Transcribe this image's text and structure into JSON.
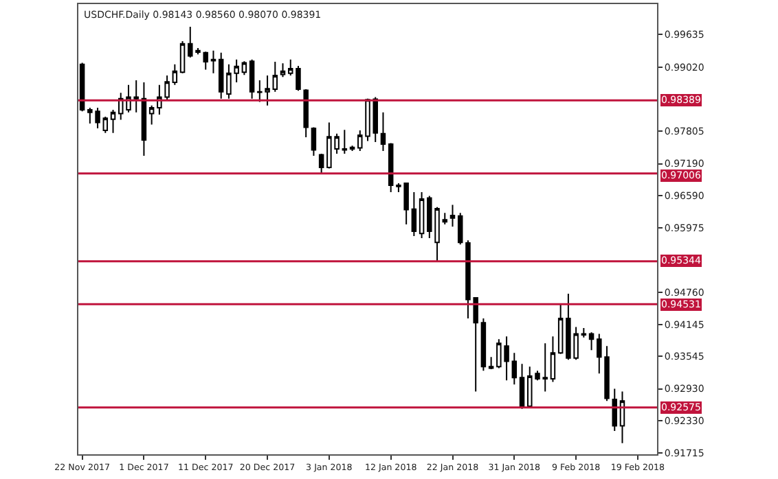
{
  "chart_data": {
    "type": "candlestick",
    "title": "USDCHF.Daily 0.98143 0.98560 0.98070 0.98391",
    "categories": [
      "22 Nov 2017",
      null,
      null,
      null,
      null,
      null,
      null,
      null,
      "1 Dec 2017",
      null,
      null,
      null,
      null,
      null,
      null,
      null,
      "11 Dec 2017",
      null,
      null,
      null,
      null,
      null,
      null,
      null,
      "20 Dec 2017",
      null,
      null,
      null,
      null,
      null,
      null,
      null,
      "3 Jan 2018",
      null,
      null,
      null,
      null,
      null,
      null,
      null,
      "12 Jan 2018",
      null,
      null,
      null,
      null,
      null,
      null,
      null,
      "22 Jan 2018",
      null,
      null,
      null,
      null,
      null,
      null,
      null,
      "31 Jan 2018",
      null,
      null,
      null,
      null,
      null,
      null,
      null,
      "9 Feb 2018",
      null,
      null,
      null,
      null,
      null,
      null,
      null,
      "19 Feb 2018",
      null,
      null
    ],
    "ohlc": [
      [
        0.9907,
        0.991,
        0.9818,
        0.9821
      ],
      [
        0.9821,
        0.9825,
        0.9795,
        0.9816
      ],
      [
        0.9818,
        0.9825,
        0.9786,
        0.9797
      ],
      [
        0.9782,
        0.9808,
        0.9777,
        0.9805
      ],
      [
        0.9803,
        0.9821,
        0.9777,
        0.9816
      ],
      [
        0.9814,
        0.9853,
        0.9802,
        0.9842
      ],
      [
        0.9821,
        0.9868,
        0.9816,
        0.9845
      ],
      [
        0.9845,
        0.9877,
        0.9816,
        0.9842
      ],
      [
        0.9842,
        0.9873,
        0.9734,
        0.9764
      ],
      [
        0.9814,
        0.9829,
        0.9793,
        0.9825
      ],
      [
        0.9825,
        0.9868,
        0.9812,
        0.9845
      ],
      [
        0.9845,
        0.9886,
        0.9838,
        0.9874
      ],
      [
        0.9873,
        0.9907,
        0.9868,
        0.9894
      ],
      [
        0.9892,
        0.9951,
        0.989,
        0.9946
      ],
      [
        0.9946,
        0.9978,
        0.992,
        0.9923
      ],
      [
        0.9933,
        0.9938,
        0.9926,
        0.993
      ],
      [
        0.9929,
        0.9931,
        0.9897,
        0.9912
      ],
      [
        0.9916,
        0.9933,
        0.989,
        0.9914
      ],
      [
        0.9916,
        0.9929,
        0.9842,
        0.9855
      ],
      [
        0.9851,
        0.9907,
        0.9842,
        0.989
      ],
      [
        0.989,
        0.9916,
        0.9873,
        0.9903
      ],
      [
        0.9892,
        0.9913,
        0.9887,
        0.991
      ],
      [
        0.9913,
        0.9916,
        0.9842,
        0.9855
      ],
      [
        0.9855,
        0.9877,
        0.9836,
        0.9854
      ],
      [
        0.9855,
        0.9886,
        0.9829,
        0.9861
      ],
      [
        0.986,
        0.9912,
        0.9855,
        0.9886
      ],
      [
        0.9888,
        0.9909,
        0.9883,
        0.9894
      ],
      [
        0.989,
        0.9916,
        0.9886,
        0.9899
      ],
      [
        0.9899,
        0.9904,
        0.9857,
        0.986
      ],
      [
        0.9858,
        0.986,
        0.9769,
        0.9788
      ],
      [
        0.9786,
        0.9788,
        0.9734,
        0.9745
      ],
      [
        0.9736,
        0.9738,
        0.9699,
        0.9712
      ],
      [
        0.9712,
        0.9797,
        0.971,
        0.977
      ],
      [
        0.9747,
        0.9776,
        0.9738,
        0.977
      ],
      [
        0.9747,
        0.9783,
        0.9738,
        0.9745
      ],
      [
        0.9747,
        0.9753,
        0.9743,
        0.975
      ],
      [
        0.9749,
        0.9782,
        0.9743,
        0.9773
      ],
      [
        0.9771,
        0.9842,
        0.9762,
        0.984
      ],
      [
        0.9841,
        0.9845,
        0.976,
        0.9777
      ],
      [
        0.9776,
        0.9816,
        0.9743,
        0.9756
      ],
      [
        0.9756,
        0.9758,
        0.9665,
        0.9678
      ],
      [
        0.9678,
        0.9682,
        0.9665,
        0.9676
      ],
      [
        0.9682,
        0.9683,
        0.9604,
        0.9632
      ],
      [
        0.9633,
        0.9665,
        0.9582,
        0.9591
      ],
      [
        0.9587,
        0.9665,
        0.9578,
        0.9652
      ],
      [
        0.9654,
        0.9658,
        0.9578,
        0.9591
      ],
      [
        0.957,
        0.9637,
        0.9535,
        0.9634
      ],
      [
        0.9609,
        0.9626,
        0.9604,
        0.9613
      ],
      [
        0.9616,
        0.9641,
        0.96,
        0.9621
      ],
      [
        0.962,
        0.9626,
        0.9566,
        0.957
      ],
      [
        0.9569,
        0.9574,
        0.9426,
        0.9462
      ],
      [
        0.9465,
        0.9465,
        0.9288,
        0.9418
      ],
      [
        0.9418,
        0.9426,
        0.9327,
        0.9335
      ],
      [
        0.9335,
        0.9353,
        0.933,
        0.9332
      ],
      [
        0.9335,
        0.9387,
        0.9332,
        0.9379
      ],
      [
        0.9374,
        0.9392,
        0.9309,
        0.9345
      ],
      [
        0.9345,
        0.9361,
        0.9301,
        0.9314
      ],
      [
        0.9314,
        0.934,
        0.9255,
        0.926
      ],
      [
        0.926,
        0.9335,
        0.9258,
        0.9317
      ],
      [
        0.9322,
        0.9327,
        0.9309,
        0.9312
      ],
      [
        0.9314,
        0.9379,
        0.9288,
        0.9312
      ],
      [
        0.9312,
        0.9392,
        0.9306,
        0.9361
      ],
      [
        0.9361,
        0.9452,
        0.9359,
        0.9426
      ],
      [
        0.9426,
        0.9473,
        0.9348,
        0.9351
      ],
      [
        0.9351,
        0.941,
        0.9348,
        0.9397
      ],
      [
        0.9397,
        0.9408,
        0.939,
        0.9395
      ],
      [
        0.9397,
        0.94,
        0.9366,
        0.9387
      ],
      [
        0.9387,
        0.9397,
        0.9322,
        0.9353
      ],
      [
        0.9353,
        0.9374,
        0.927,
        0.9275
      ],
      [
        0.9273,
        0.9293,
        0.9213,
        0.9223
      ],
      [
        0.9223,
        0.9288,
        0.919,
        0.927
      ],
      null,
      null,
      null,
      null
    ],
    "ylim": [
      0.9169,
      1.0021
    ],
    "yticks": [
      0.99635,
      {
        "value": 0.9902,
        "label": "0.99020"
      },
      0.97805,
      {
        "value": 0.9719,
        "label": "0.97190"
      },
      {
        "value": 0.9659,
        "label": "0.96590"
      },
      0.95975,
      {
        "value": 0.9476,
        "label": "0.94760"
      },
      0.94145,
      0.93545,
      {
        "value": 0.9293,
        "label": "0.92930"
      },
      {
        "value": 0.9233,
        "label": "0.92330"
      },
      0.91715
    ],
    "ref_lines": [
      {
        "axis": "y",
        "value": 0.98389,
        "label": "0.98389",
        "color": "#c0143c"
      },
      {
        "axis": "y",
        "value": 0.97006,
        "label": "0.97006",
        "color": "#c0143c"
      },
      {
        "axis": "y",
        "value": 0.95344,
        "label": "0.95344",
        "color": "#c0143c"
      },
      {
        "axis": "y",
        "value": 0.94531,
        "label": "0.94531",
        "color": "#c0143c"
      },
      {
        "axis": "y",
        "value": 0.92575,
        "label": "0.92575",
        "color": "#c0143c"
      }
    ],
    "legend": false
  }
}
